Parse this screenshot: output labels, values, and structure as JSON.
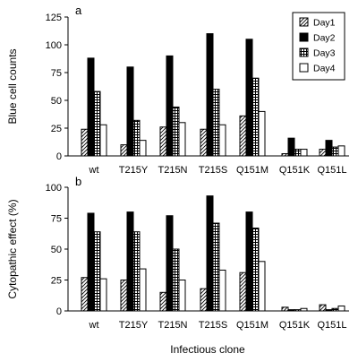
{
  "x_axis_title": "Infectious clone",
  "legend_entries": [
    {
      "name": "Day1",
      "pattern": "hatch"
    },
    {
      "name": "Day2",
      "pattern": "solid"
    },
    {
      "name": "Day3",
      "pattern": "grid"
    },
    {
      "name": "Day4",
      "pattern": "open"
    }
  ],
  "chart_data": [
    {
      "type": "bar",
      "panel_label": "a",
      "ylabel": "Blue cell counts",
      "ylim": [
        0,
        125
      ],
      "yticks": [
        0,
        25,
        50,
        75,
        100,
        125
      ],
      "legend": "top-right",
      "categories": [
        "wt",
        "T215Y",
        "T215N",
        "T215S",
        "Q151M",
        "Q151K",
        "Q151L"
      ],
      "series": [
        {
          "name": "Day1",
          "values": [
            24,
            10,
            26,
            24,
            36,
            2,
            6
          ]
        },
        {
          "name": "Day2",
          "values": [
            88,
            80,
            90,
            110,
            105,
            16,
            14
          ]
        },
        {
          "name": "Day3",
          "values": [
            58,
            32,
            44,
            60,
            70,
            6,
            8
          ]
        },
        {
          "name": "Day4",
          "values": [
            28,
            14,
            30,
            28,
            40,
            6,
            9
          ]
        }
      ]
    },
    {
      "type": "bar",
      "panel_label": "b",
      "ylabel": "Cytopathic effect (%)",
      "ylim": [
        0,
        100
      ],
      "yticks": [
        0,
        25,
        50,
        75,
        100
      ],
      "categories": [
        "wt",
        "T215Y",
        "T215N",
        "T215S",
        "Q151M",
        "Q151K",
        "Q151L"
      ],
      "series": [
        {
          "name": "Day1",
          "values": [
            27,
            25,
            15,
            18,
            31,
            3,
            5
          ]
        },
        {
          "name": "Day2",
          "values": [
            79,
            80,
            77,
            93,
            80,
            1,
            1
          ]
        },
        {
          "name": "Day3",
          "values": [
            64,
            64,
            50,
            71,
            67,
            1,
            2
          ]
        },
        {
          "name": "Day4",
          "values": [
            26,
            34,
            25,
            33,
            40,
            2,
            4
          ]
        }
      ]
    }
  ]
}
